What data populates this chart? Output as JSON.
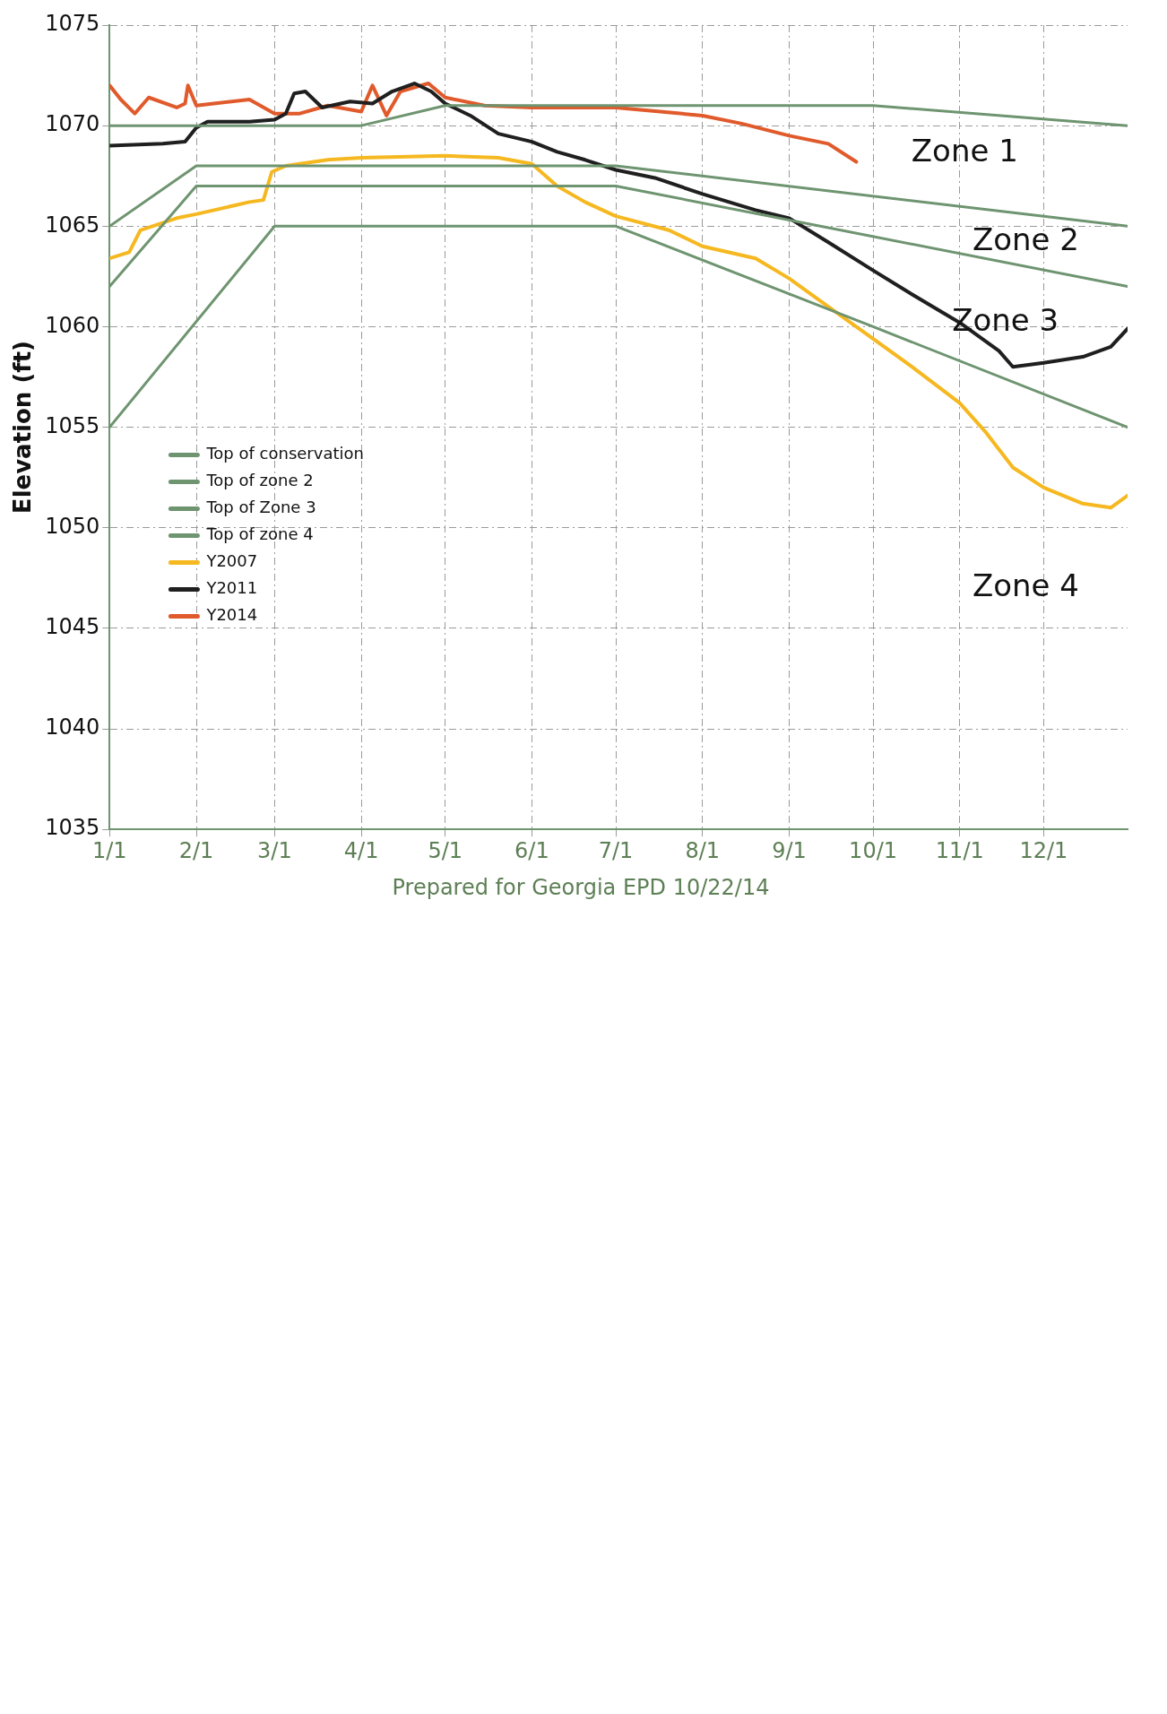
{
  "chart_data": {
    "type": "line",
    "ylabel": "Elevation (ft)",
    "xlim": [
      "--01-01",
      "--12-31"
    ],
    "xticks": [
      {
        "value": "--01-01",
        "label": "1/1"
      },
      {
        "value": "--02-01",
        "label": "2/1"
      },
      {
        "value": "--03-01",
        "label": "3/1"
      },
      {
        "value": "--04-01",
        "label": "4/1"
      },
      {
        "value": "--05-01",
        "label": "5/1"
      },
      {
        "value": "--06-01",
        "label": "6/1"
      },
      {
        "value": "--07-01",
        "label": "7/1"
      },
      {
        "value": "--08-01",
        "label": "8/1"
      },
      {
        "value": "--09-01",
        "label": "9/1"
      },
      {
        "value": "--10-01",
        "label": "10/1"
      },
      {
        "value": "--11-01",
        "label": "11/1"
      },
      {
        "value": "--12-01",
        "label": "12/1"
      }
    ],
    "ylim": [
      1035,
      1075
    ],
    "yticks": [
      1035,
      1040,
      1045,
      1050,
      1055,
      1060,
      1065,
      1070,
      1075
    ],
    "grid": true,
    "legend": "left",
    "line_style": "solid",
    "marker": "none",
    "series": [
      {
        "name": "Top of conservation",
        "color": "#6e9470",
        "x": [
          "--01-01",
          "--04-01",
          "--05-01",
          "--10-01",
          "--12-31"
        ],
        "values": [
          1070,
          1070,
          1071,
          1071,
          1070
        ]
      },
      {
        "name": "Top of zone 2",
        "color": "#6e9470",
        "x": [
          "--01-01",
          "--02-01",
          "--07-01",
          "--12-31"
        ],
        "values": [
          1065,
          1068,
          1068,
          1065
        ]
      },
      {
        "name": "Top of Zone 3",
        "color": "#6e9470",
        "x": [
          "--01-01",
          "--02-01",
          "--07-01",
          "--12-31"
        ],
        "values": [
          1062,
          1067,
          1067,
          1062
        ]
      },
      {
        "name": "Top of zone 4",
        "color": "#6e9470",
        "x": [
          "--01-01",
          "--03-01",
          "--07-01",
          "--10-01",
          "--12-31"
        ],
        "values": [
          1055,
          1065,
          1065,
          1060,
          1055
        ]
      },
      {
        "name": "Y2007",
        "color": "#f5b820",
        "x": [
          "--01-01",
          "--01-08",
          "--01-12",
          "--01-25",
          "--02-01",
          "--02-20",
          "--02-25",
          "--02-28",
          "--03-05",
          "--03-20",
          "--04-01",
          "--05-01",
          "--05-20",
          "--06-01",
          "--06-10",
          "--06-20",
          "--07-01",
          "--07-20",
          "--08-01",
          "--08-20",
          "--09-01",
          "--09-15",
          "--10-01",
          "--10-15",
          "--11-01",
          "--11-10",
          "--11-20",
          "--12-01",
          "--12-15",
          "--12-25",
          "--12-31"
        ],
        "values": [
          1063.4,
          1063.7,
          1064.8,
          1065.4,
          1065.6,
          1066.2,
          1066.3,
          1067.7,
          1068.0,
          1068.3,
          1068.4,
          1068.5,
          1068.4,
          1068.1,
          1067.0,
          1066.2,
          1065.5,
          1064.8,
          1064.0,
          1063.4,
          1062.4,
          1061.0,
          1059.4,
          1058.0,
          1056.2,
          1054.8,
          1053.0,
          1052.0,
          1051.2,
          1051.0,
          1051.6
        ]
      },
      {
        "name": "Y2011",
        "color": "#1f1f1f",
        "x": [
          "--01-01",
          "--01-20",
          "--01-28",
          "--02-01",
          "--02-05",
          "--02-20",
          "--03-01",
          "--03-05",
          "--03-08",
          "--03-12",
          "--03-18",
          "--03-28",
          "--04-05",
          "--04-12",
          "--04-20",
          "--04-26",
          "--05-01",
          "--05-10",
          "--05-20",
          "--06-01",
          "--06-10",
          "--06-20",
          "--07-01",
          "--07-15",
          "--08-01",
          "--08-20",
          "--09-01",
          "--09-15",
          "--10-01",
          "--10-15",
          "--11-01",
          "--11-15",
          "--11-20",
          "--12-01",
          "--12-15",
          "--12-25",
          "--12-31"
        ],
        "values": [
          1069.0,
          1069.1,
          1069.2,
          1069.9,
          1070.2,
          1070.2,
          1070.3,
          1070.6,
          1071.6,
          1071.7,
          1070.9,
          1071.2,
          1071.1,
          1071.7,
          1072.1,
          1071.7,
          1071.1,
          1070.5,
          1069.6,
          1069.2,
          1068.7,
          1068.3,
          1067.8,
          1067.4,
          1066.6,
          1065.8,
          1065.4,
          1064.2,
          1062.8,
          1061.6,
          1060.2,
          1058.8,
          1058.0,
          1058.2,
          1058.5,
          1059.0,
          1059.9
        ]
      },
      {
        "name": "Y2014",
        "color": "#e05a2b",
        "x": [
          "--01-01",
          "--01-05",
          "--01-10",
          "--01-15",
          "--01-25",
          "--01-28",
          "--01-29",
          "--02-01",
          "--02-20",
          "--03-01",
          "--03-10",
          "--03-20",
          "--04-01",
          "--04-05",
          "--04-10",
          "--04-15",
          "--04-25",
          "--05-01",
          "--05-15",
          "--06-01",
          "--07-01",
          "--08-01",
          "--08-15",
          "--09-01",
          "--09-15",
          "--09-25"
        ],
        "values": [
          1072.0,
          1071.3,
          1070.6,
          1071.4,
          1070.9,
          1071.1,
          1072.0,
          1071.0,
          1071.3,
          1070.6,
          1070.6,
          1071.0,
          1070.7,
          1072.0,
          1070.5,
          1071.7,
          1072.1,
          1071.4,
          1071.0,
          1070.9,
          1070.9,
          1070.5,
          1070.1,
          1069.5,
          1069.1,
          1068.2
        ]
      }
    ],
    "annotations": [
      "Zone 1",
      "Zone 2",
      "Zone 3",
      "Zone 4",
      "Prepared for Georgia EPD 10/22/14"
    ]
  }
}
